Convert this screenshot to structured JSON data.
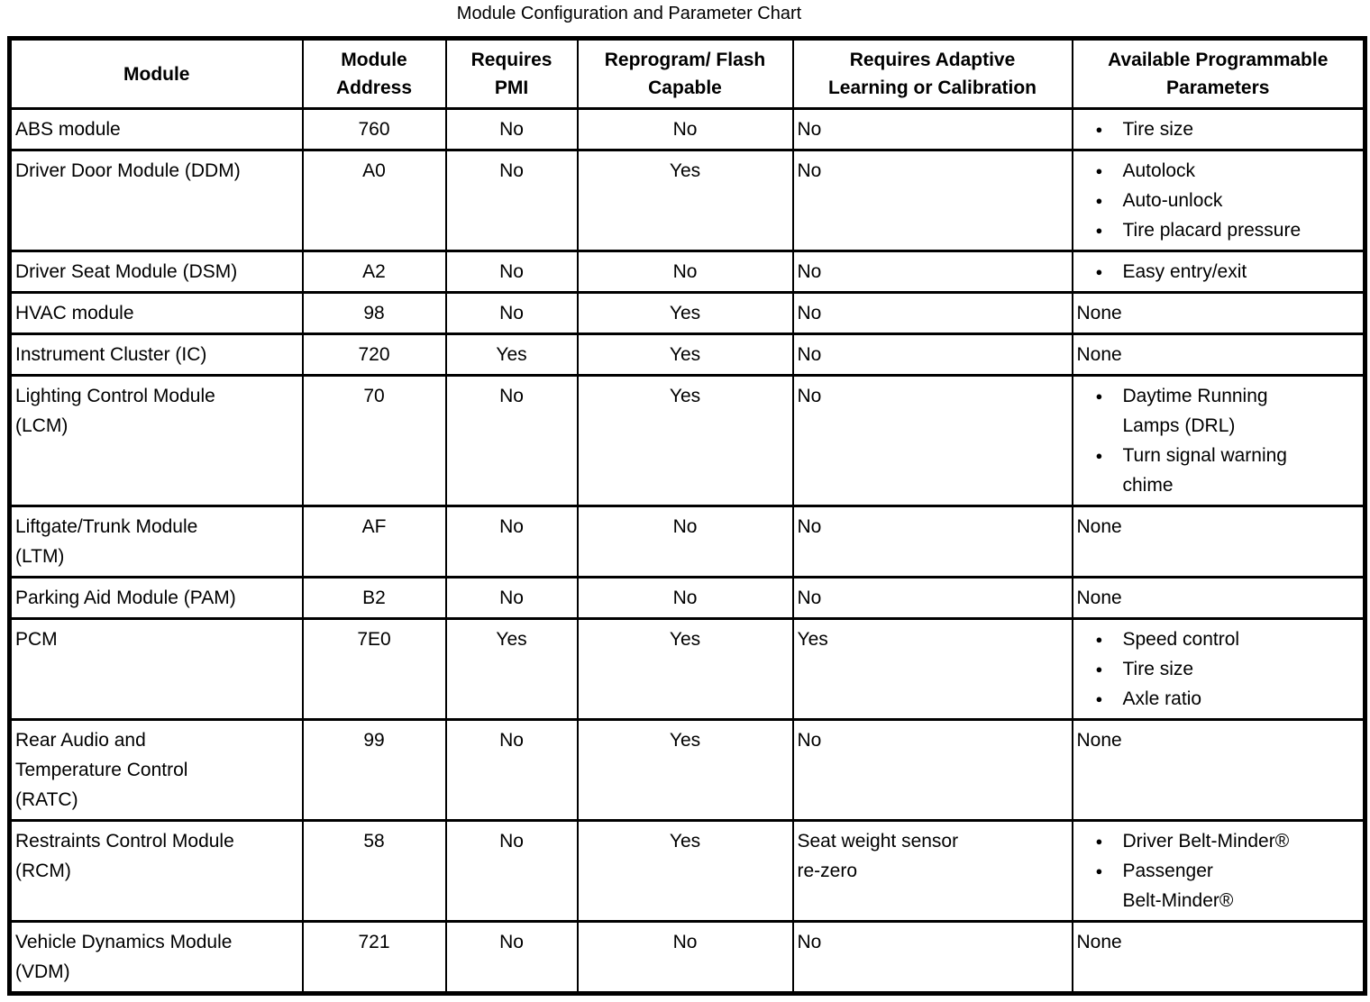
{
  "title": "Module Configuration and Parameter Chart",
  "icons": {
    "bullet": "●"
  },
  "table": {
    "columns": [
      "Module",
      "Module\nAddress",
      "Requires\nPMI",
      "Reprogram/ Flash\nCapable",
      "Requires Adaptive\nLearning or Calibration",
      "Available Programmable\nParameters"
    ],
    "rows": [
      {
        "module": "ABS module",
        "address": "760",
        "requires_pmi": "No",
        "flash_capable": "No",
        "adaptive": "No",
        "params": [
          "Tire size"
        ]
      },
      {
        "module": "Driver Door Module (DDM)",
        "address": "A0",
        "requires_pmi": "No",
        "flash_capable": "Yes",
        "adaptive": "No",
        "params": [
          "Autolock",
          "Auto-unlock",
          "Tire placard pressure"
        ]
      },
      {
        "module": "Driver Seat Module (DSM)",
        "address": "A2",
        "requires_pmi": "No",
        "flash_capable": "No",
        "adaptive": "No",
        "params": [
          "Easy entry/exit"
        ]
      },
      {
        "module": "HVAC module",
        "address": "98",
        "requires_pmi": "No",
        "flash_capable": "Yes",
        "adaptive": "No",
        "params": "None"
      },
      {
        "module": "Instrument Cluster (IC)",
        "address": "720",
        "requires_pmi": "Yes",
        "flash_capable": "Yes",
        "adaptive": "No",
        "params": "None"
      },
      {
        "module": "Lighting Control Module\n(LCM)",
        "address": "70",
        "requires_pmi": "No",
        "flash_capable": "Yes",
        "adaptive": "No",
        "params": [
          "Daytime Running\nLamps (DRL)",
          "Turn signal warning\nchime"
        ]
      },
      {
        "module": "Liftgate/Trunk Module\n(LTM)",
        "address": "AF",
        "requires_pmi": "No",
        "flash_capable": "No",
        "adaptive": "No",
        "params": "None"
      },
      {
        "module": "Parking Aid Module (PAM)",
        "address": "B2",
        "requires_pmi": "No",
        "flash_capable": "No",
        "adaptive": "No",
        "params": "None"
      },
      {
        "module": "PCM",
        "address": "7E0",
        "requires_pmi": "Yes",
        "flash_capable": "Yes",
        "adaptive": "Yes",
        "params": [
          "Speed control",
          "Tire size",
          "Axle ratio"
        ]
      },
      {
        "module": "Rear Audio and\nTemperature Control\n(RATC)",
        "address": "99",
        "requires_pmi": "No",
        "flash_capable": "Yes",
        "adaptive": "No",
        "params": "None"
      },
      {
        "module": "Restraints Control Module\n(RCM)",
        "address": "58",
        "requires_pmi": "No",
        "flash_capable": "Yes",
        "adaptive": "Seat weight sensor\nre-zero",
        "params": [
          "Driver Belt-Minder®",
          "Passenger\nBelt-Minder®"
        ]
      },
      {
        "module": "Vehicle Dynamics Module\n(VDM)",
        "address": "721",
        "requires_pmi": "No",
        "flash_capable": "No",
        "adaptive": "No",
        "params": "None"
      }
    ]
  }
}
